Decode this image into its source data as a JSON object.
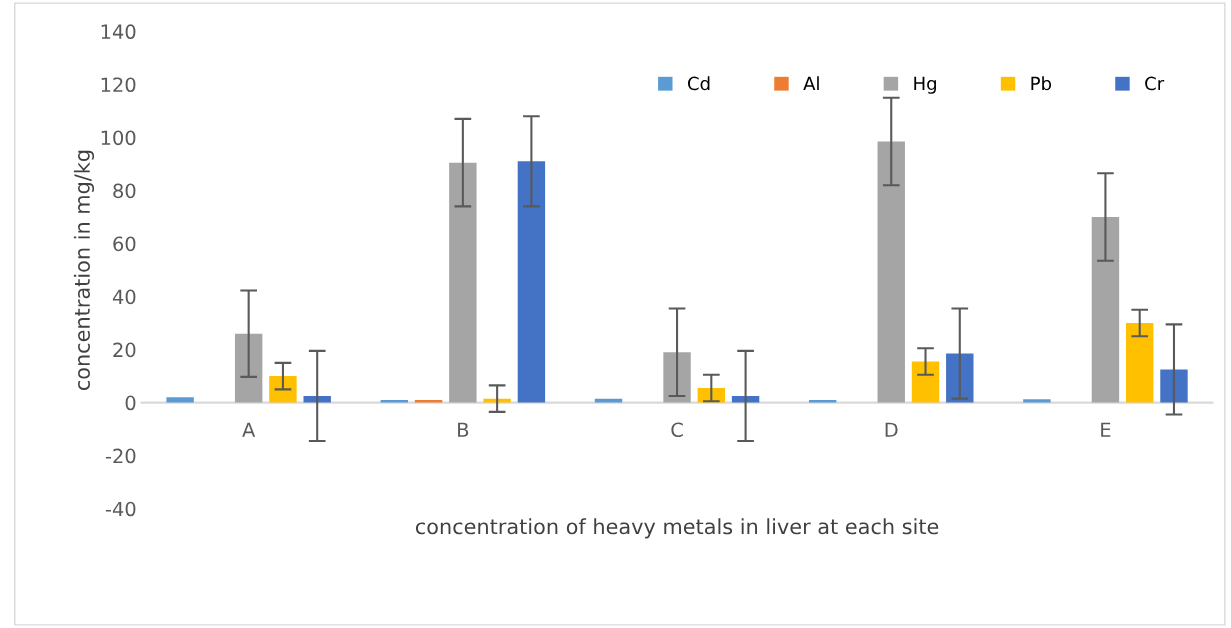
{
  "chart_data": {
    "type": "bar",
    "xlabel": "concentration of heavy metals in liver at each site",
    "ylabel": "concentration in mg/kg",
    "categories": [
      "A",
      "B",
      "C",
      "D",
      "E"
    ],
    "series": [
      {
        "name": "Cd",
        "color": "#5b9bd5",
        "values": [
          2,
          1,
          1.5,
          1,
          1.3
        ]
      },
      {
        "name": "Al",
        "color": "#ed7d31",
        "values": [
          0,
          1,
          0,
          0,
          0
        ]
      },
      {
        "name": "Hg",
        "color": "#a5a5a5",
        "values": [
          26,
          90.5,
          19,
          98.5,
          70
        ],
        "errors": [
          16.3,
          16.5,
          16.5,
          16.5,
          16.5
        ]
      },
      {
        "name": "Pb",
        "color": "#ffc000",
        "values": [
          10,
          1.5,
          5.5,
          15.5,
          30
        ],
        "errors": [
          5,
          5,
          5,
          5,
          5
        ]
      },
      {
        "name": "Cr",
        "color": "#4472c4",
        "values": [
          2.5,
          91,
          2.5,
          18.5,
          12.5
        ],
        "errors": [
          17,
          17,
          17,
          17,
          17
        ]
      }
    ],
    "ylim": [
      -40,
      140
    ],
    "yticks": [
      -40,
      -20,
      0,
      20,
      40,
      60,
      80,
      100,
      120,
      140
    ],
    "grid": false,
    "legend": "top right"
  }
}
